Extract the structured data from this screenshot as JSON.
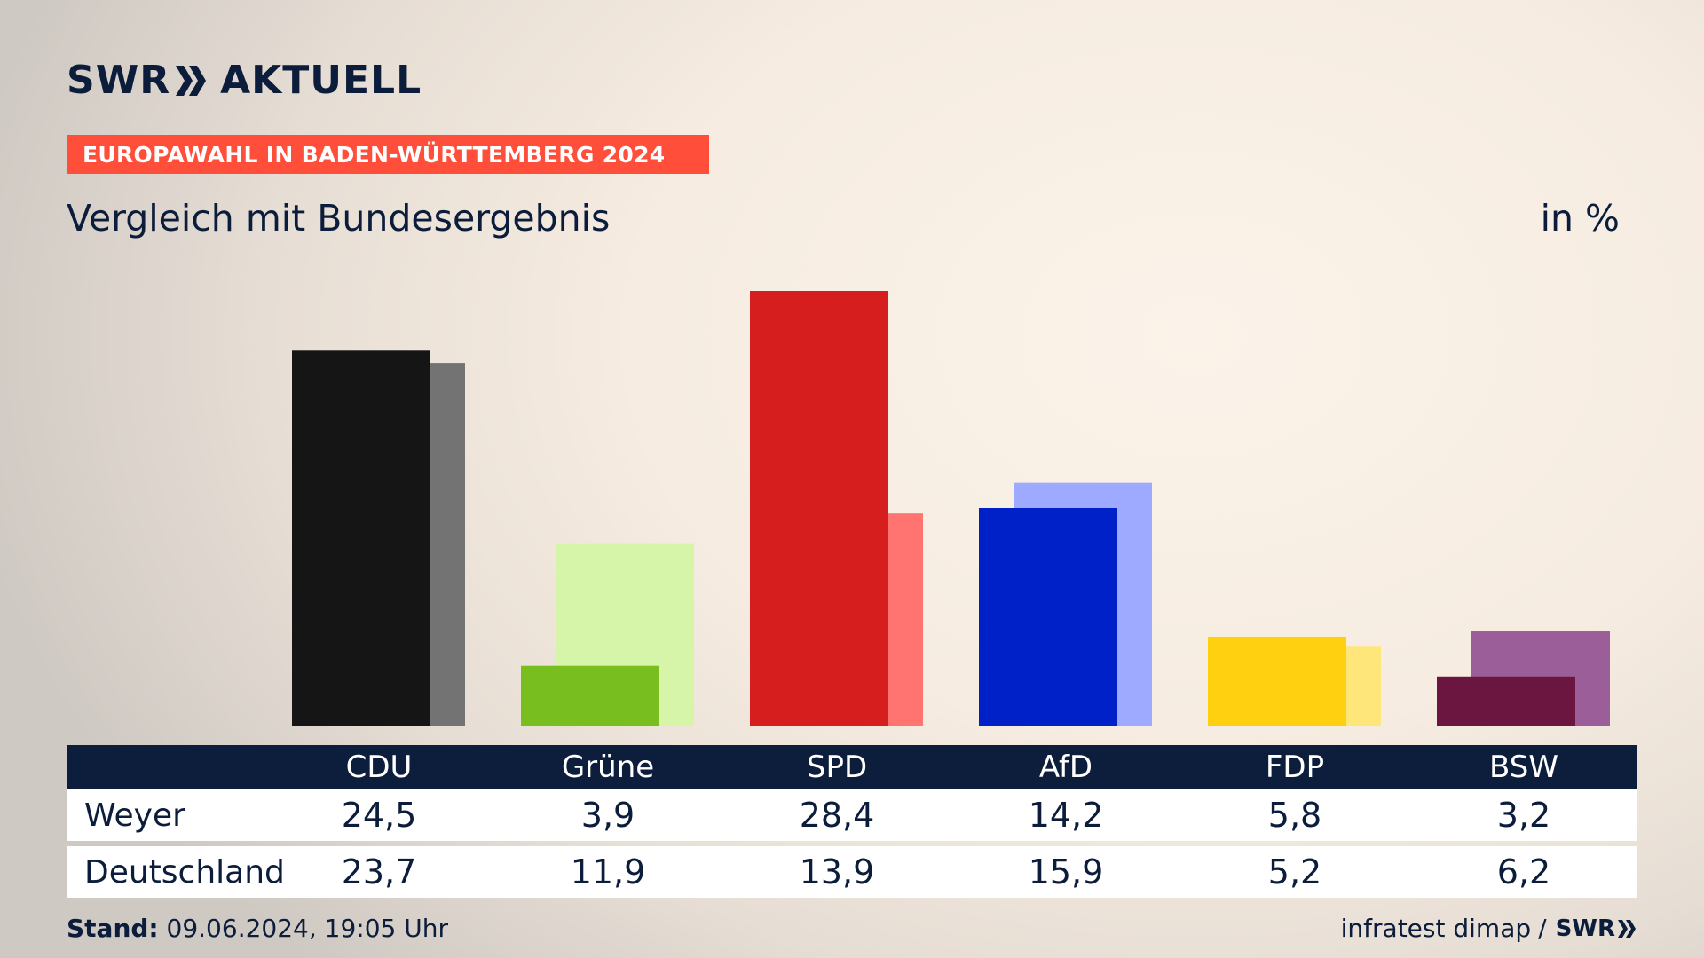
{
  "brand": {
    "logo_left": "SWR",
    "logo_right": "AKTUELL",
    "color_navy": "#0b1d3b",
    "color_accent": "#ff4f3b"
  },
  "header": {
    "kicker": "EUROPAWAHL IN BADEN-WÜRTTEMBERG 2024",
    "title": "Vergleich mit Bundesergebnis",
    "unit": "in %"
  },
  "chart_data": {
    "type": "bar",
    "categories": [
      "CDU",
      "Grüne",
      "SPD",
      "AfD",
      "FDP",
      "BSW"
    ],
    "series": [
      {
        "name": "Weyer",
        "values": [
          24.5,
          3.9,
          28.4,
          14.2,
          5.8,
          3.2
        ],
        "colors": [
          "#151515",
          "#78be1e",
          "#d61e1e",
          "#0020c8",
          "#ffd010",
          "#6a1640"
        ]
      },
      {
        "name": "Deutschland",
        "values": [
          23.7,
          11.9,
          13.9,
          15.9,
          5.2,
          6.2
        ],
        "colors": [
          "#737373",
          "#d6f5a8",
          "#ff7470",
          "#9eaaff",
          "#ffe67a",
          "#9b5e99"
        ]
      }
    ],
    "ylim": [
      0,
      28.4
    ],
    "grid": false
  },
  "table": {
    "headers": [
      "CDU",
      "Grüne",
      "SPD",
      "AfD",
      "FDP",
      "BSW"
    ],
    "rows": [
      {
        "label": "Weyer",
        "values": [
          "24,5",
          "3,9",
          "28,4",
          "14,2",
          "5,8",
          "3,2"
        ]
      },
      {
        "label": "Deutschland",
        "values": [
          "23,7",
          "11,9",
          "13,9",
          "15,9",
          "5,2",
          "6,2"
        ]
      }
    ]
  },
  "footer": {
    "stand_label": "Stand:",
    "stand_value": "09.06.2024, 19:05 Uhr",
    "source": "infratest dimap",
    "separator": "/",
    "source_brand": "SWR"
  }
}
